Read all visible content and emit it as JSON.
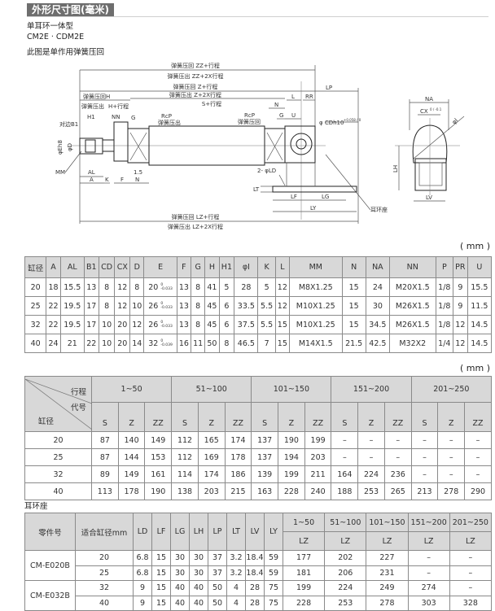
{
  "header": {
    "title": "外形尺寸图(毫米)",
    "line1": "单耳环一体型",
    "line2": "CM2E · CDM2E",
    "line3": "此图是单作用弹簧压回"
  },
  "drawing": {
    "zz_return": "弹簧压回 ZZ+行程",
    "zz_extend": "弹簧压出 ZZ+2X行程",
    "z_return": "弹簧压回 Z+行程",
    "z_extend": "弹簧压出 Z+2X行程",
    "h_return": "弹簧压回H",
    "h_extend_a": "弹簧压出",
    "h_extend_b": "H+行程",
    "s_stroke": "S+行程",
    "lp": "LP",
    "l": "L",
    "rr": "RR",
    "n_top": "N",
    "g_right": "G",
    "u": "U",
    "h1": "H1",
    "nn": "NN",
    "g_left": "G",
    "rcp_left": "RcP",
    "rcp_left_sub": "弹簧压出",
    "rcp_right": "RcP",
    "rcp_right_sub": "弹簧压回",
    "cd": "φ CDh10",
    "cd_tol": "+0.058 / 0",
    "b1": "对边B1",
    "eh8": "φEh8",
    "d": "φD",
    "mm": "MM",
    "al": "AL",
    "a": "A",
    "k": "K",
    "f": "F",
    "dim15": "1.5",
    "n_bottom": "N",
    "ld": "2- φLD",
    "lt": "LT",
    "lf": "LF",
    "lg": "LG",
    "ly": "LY",
    "lz_return": "弹簧压回 LZ+行程",
    "lz_extend": "弹簧压出 LZ+2X行程",
    "bracket": "耳环座",
    "na": "NA",
    "cx": "CX",
    "cx_tol": "0 / -0.1",
    "phi_i": "φI",
    "lh": "LH",
    "lv": "LV"
  },
  "unit_label": "( mm )",
  "table1": {
    "headers": [
      "缸径",
      "A",
      "AL",
      "B1",
      "CD",
      "CX",
      "D",
      "E",
      "F",
      "G",
      "H",
      "H1",
      "φI",
      "K",
      "L",
      "MM",
      "N",
      "NA",
      "NN",
      "P",
      "PR",
      "U"
    ],
    "rows": [
      [
        "20",
        "18",
        "15.5",
        "13",
        "8",
        "12",
        "8",
        {
          "v": "20",
          "up": "0",
          "lo": "-0.033"
        },
        "13",
        "8",
        "41",
        "5",
        "28",
        "5",
        "12",
        "M8X1.25",
        "15",
        "24",
        "M20X1.5",
        "1/8",
        "9",
        "15.5"
      ],
      [
        "25",
        "22",
        "19.5",
        "17",
        "8",
        "12",
        "10",
        {
          "v": "26",
          "up": "0",
          "lo": "-0.033"
        },
        "13",
        "8",
        "45",
        "6",
        "33.5",
        "5.5",
        "12",
        "M10X1.25",
        "15",
        "30",
        "M26X1.5",
        "1/8",
        "9",
        "11.5"
      ],
      [
        "32",
        "22",
        "19.5",
        "17",
        "10",
        "20",
        "12",
        {
          "v": "26",
          "up": "0",
          "lo": "-0.033"
        },
        "13",
        "8",
        "45",
        "6",
        "37.5",
        "5.5",
        "15",
        "M10X1.25",
        "15",
        "34.5",
        "M26X1.5",
        "1/8",
        "12",
        "14.5"
      ],
      [
        "40",
        "24",
        "21",
        "22",
        "10",
        "20",
        "14",
        {
          "v": "32",
          "up": "0",
          "lo": "-0.039"
        },
        "16",
        "11",
        "50",
        "8",
        "46.5",
        "7",
        "15",
        "M14X1.5",
        "21.5",
        "42.5",
        "M32X2",
        "1/4",
        "12",
        "14.5"
      ]
    ]
  },
  "table2": {
    "corner": {
      "stroke": "行程",
      "code": "代号",
      "bore": "缸径"
    },
    "ranges": [
      "1~50",
      "51~100",
      "101~150",
      "151~200",
      "201~250"
    ],
    "codes": [
      "S",
      "Z",
      "ZZ"
    ],
    "rows": [
      {
        "bore": "20",
        "values": [
          "87",
          "140",
          "149",
          "112",
          "165",
          "174",
          "137",
          "190",
          "199",
          "–",
          "–",
          "–",
          "–",
          "–",
          "–"
        ]
      },
      {
        "bore": "25",
        "values": [
          "87",
          "144",
          "153",
          "112",
          "169",
          "178",
          "137",
          "194",
          "203",
          "–",
          "–",
          "–",
          "–",
          "–",
          "–"
        ]
      },
      {
        "bore": "32",
        "values": [
          "89",
          "149",
          "161",
          "114",
          "174",
          "186",
          "139",
          "199",
          "211",
          "164",
          "224",
          "236",
          "–",
          "–",
          "–"
        ]
      },
      {
        "bore": "40",
        "values": [
          "113",
          "178",
          "190",
          "138",
          "203",
          "215",
          "163",
          "228",
          "240",
          "188",
          "253",
          "265",
          "213",
          "278",
          "290"
        ]
      }
    ]
  },
  "table3": {
    "label": "耳环座",
    "headers": [
      "零件号",
      "适合缸径mm",
      "LD",
      "LF",
      "LG",
      "LH",
      "LP",
      "LT",
      "LV",
      "LY"
    ],
    "ranges": [
      "1~50",
      "51~100",
      "101~150",
      "151~200",
      "201~250"
    ],
    "lz": "LZ",
    "groups": [
      {
        "part": "CM-E020B",
        "rows": [
          [
            "20",
            "6.8",
            "15",
            "30",
            "30",
            "37",
            "3.2",
            "18.4",
            "59",
            "177",
            "202",
            "227",
            "–",
            "–"
          ],
          [
            "25",
            "6.8",
            "15",
            "30",
            "30",
            "37",
            "3.2",
            "18.4",
            "59",
            "181",
            "206",
            "231",
            "–",
            "–"
          ]
        ]
      },
      {
        "part": "CM-E032B",
        "rows": [
          [
            "32",
            "9",
            "15",
            "40",
            "40",
            "50",
            "4",
            "28",
            "75",
            "199",
            "224",
            "249",
            "274",
            "–"
          ],
          [
            "40",
            "9",
            "15",
            "40",
            "40",
            "50",
            "4",
            "28",
            "75",
            "228",
            "253",
            "278",
            "303",
            "328"
          ]
        ]
      }
    ]
  }
}
